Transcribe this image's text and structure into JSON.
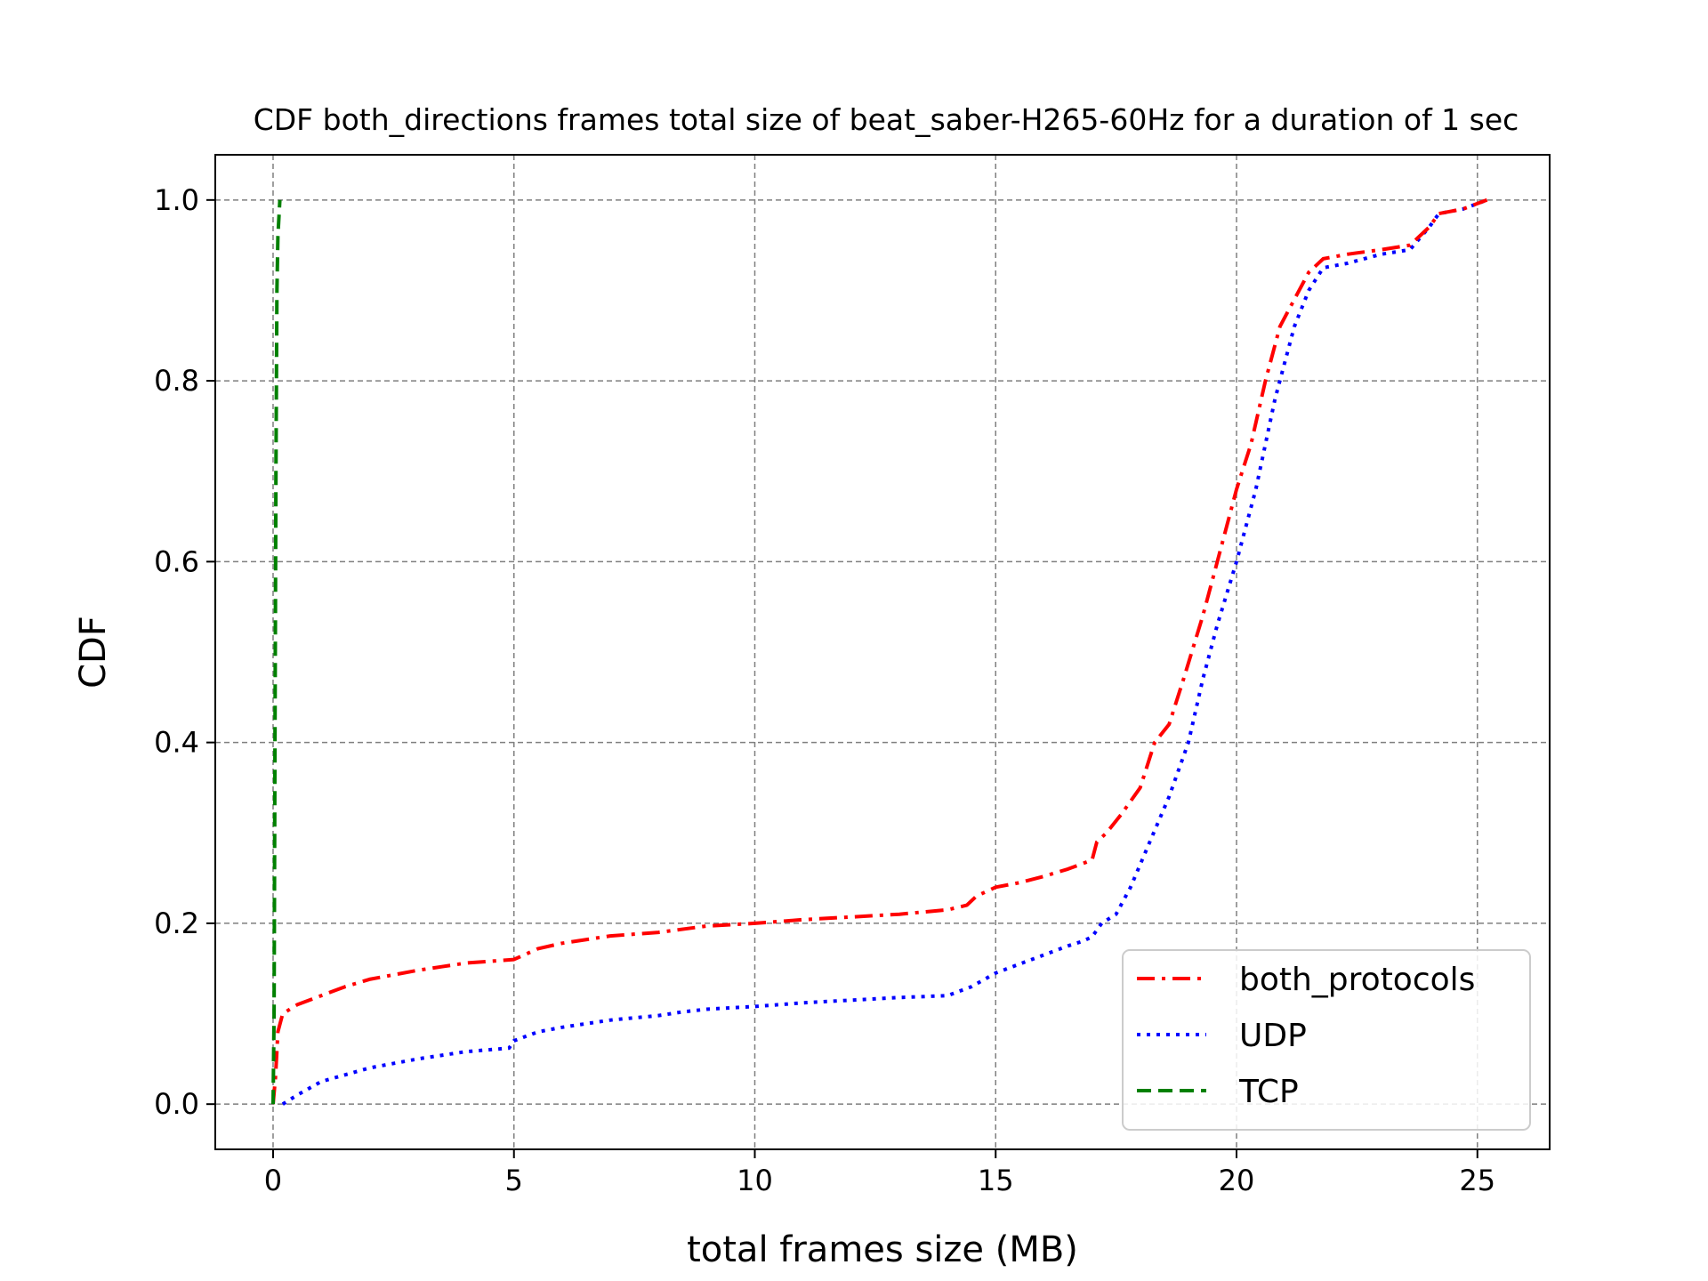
{
  "chart_data": {
    "type": "line",
    "title": "CDF both_directions frames total size of beat_saber-H265-60Hz for a duration of 1 sec",
    "xlabel": "total frames size (MB)",
    "ylabel": "CDF",
    "xlim": [
      -1.2,
      26.5
    ],
    "ylim": [
      -0.05,
      1.05
    ],
    "xticks": [
      0,
      5,
      10,
      15,
      20,
      25
    ],
    "yticks": [
      0.0,
      0.2,
      0.4,
      0.6,
      0.8,
      1.0
    ],
    "xtick_labels": [
      "0",
      "5",
      "10",
      "15",
      "20",
      "25"
    ],
    "ytick_labels": [
      "0.0",
      "0.2",
      "0.4",
      "0.6",
      "0.8",
      "1.0"
    ],
    "grid": true,
    "legend_position": "lower-right",
    "series": [
      {
        "name": "both_protocols",
        "color": "#ff0000",
        "style": "dashdot",
        "x": [
          0.0,
          0.05,
          0.1,
          0.2,
          0.5,
          1.0,
          1.5,
          2.0,
          3.0,
          3.5,
          4.0,
          5.0,
          5.5,
          6.0,
          7.0,
          8.0,
          9.0,
          10.0,
          11.0,
          12.0,
          13.0,
          14.0,
          14.4,
          14.6,
          15.0,
          15.5,
          16.0,
          16.5,
          17.0,
          17.1,
          17.3,
          17.6,
          18.0,
          18.3,
          18.6,
          18.9,
          19.3,
          19.6,
          19.8,
          20.0,
          20.3,
          20.6,
          20.9,
          21.2,
          21.5,
          21.8,
          22.3,
          23.0,
          23.6,
          24.0,
          24.2,
          24.7,
          25.2
        ],
        "y": [
          0.0,
          0.03,
          0.08,
          0.1,
          0.11,
          0.12,
          0.13,
          0.138,
          0.148,
          0.152,
          0.156,
          0.16,
          0.172,
          0.178,
          0.186,
          0.19,
          0.197,
          0.2,
          0.204,
          0.207,
          0.21,
          0.215,
          0.22,
          0.23,
          0.24,
          0.245,
          0.252,
          0.26,
          0.27,
          0.29,
          0.3,
          0.32,
          0.35,
          0.4,
          0.42,
          0.47,
          0.54,
          0.6,
          0.64,
          0.68,
          0.73,
          0.8,
          0.86,
          0.89,
          0.92,
          0.935,
          0.94,
          0.945,
          0.95,
          0.97,
          0.985,
          0.99,
          1.0
        ]
      },
      {
        "name": "UDP",
        "color": "#0000ff",
        "style": "dotted",
        "x": [
          0.2,
          0.5,
          1.0,
          2.0,
          3.0,
          4.0,
          4.9,
          5.0,
          5.5,
          6.0,
          7.0,
          8.0,
          8.5,
          9.0,
          10.0,
          11.0,
          12.0,
          13.0,
          14.0,
          14.5,
          15.0,
          15.5,
          16.0,
          16.5,
          16.8,
          17.0,
          17.2,
          17.5,
          17.8,
          18.2,
          18.6,
          19.0,
          19.3,
          19.6,
          20.0,
          20.4,
          20.8,
          21.2,
          21.5,
          21.8,
          22.3,
          23.0,
          23.6,
          24.0,
          24.2,
          24.7,
          25.2
        ],
        "y": [
          0.0,
          0.01,
          0.025,
          0.04,
          0.05,
          0.058,
          0.062,
          0.07,
          0.08,
          0.085,
          0.093,
          0.098,
          0.102,
          0.105,
          0.108,
          0.112,
          0.115,
          0.118,
          0.12,
          0.13,
          0.145,
          0.155,
          0.165,
          0.175,
          0.18,
          0.185,
          0.2,
          0.21,
          0.24,
          0.29,
          0.34,
          0.4,
          0.47,
          0.53,
          0.6,
          0.68,
          0.78,
          0.86,
          0.9,
          0.925,
          0.93,
          0.94,
          0.945,
          0.97,
          0.985,
          0.99,
          1.0
        ]
      },
      {
        "name": "TCP",
        "color": "#008000",
        "style": "dashed",
        "x": [
          0.0,
          0.02,
          0.04,
          0.06,
          0.08,
          0.1,
          0.14
        ],
        "y": [
          0.0,
          0.1,
          0.4,
          0.7,
          0.9,
          0.96,
          1.0
        ]
      }
    ]
  }
}
